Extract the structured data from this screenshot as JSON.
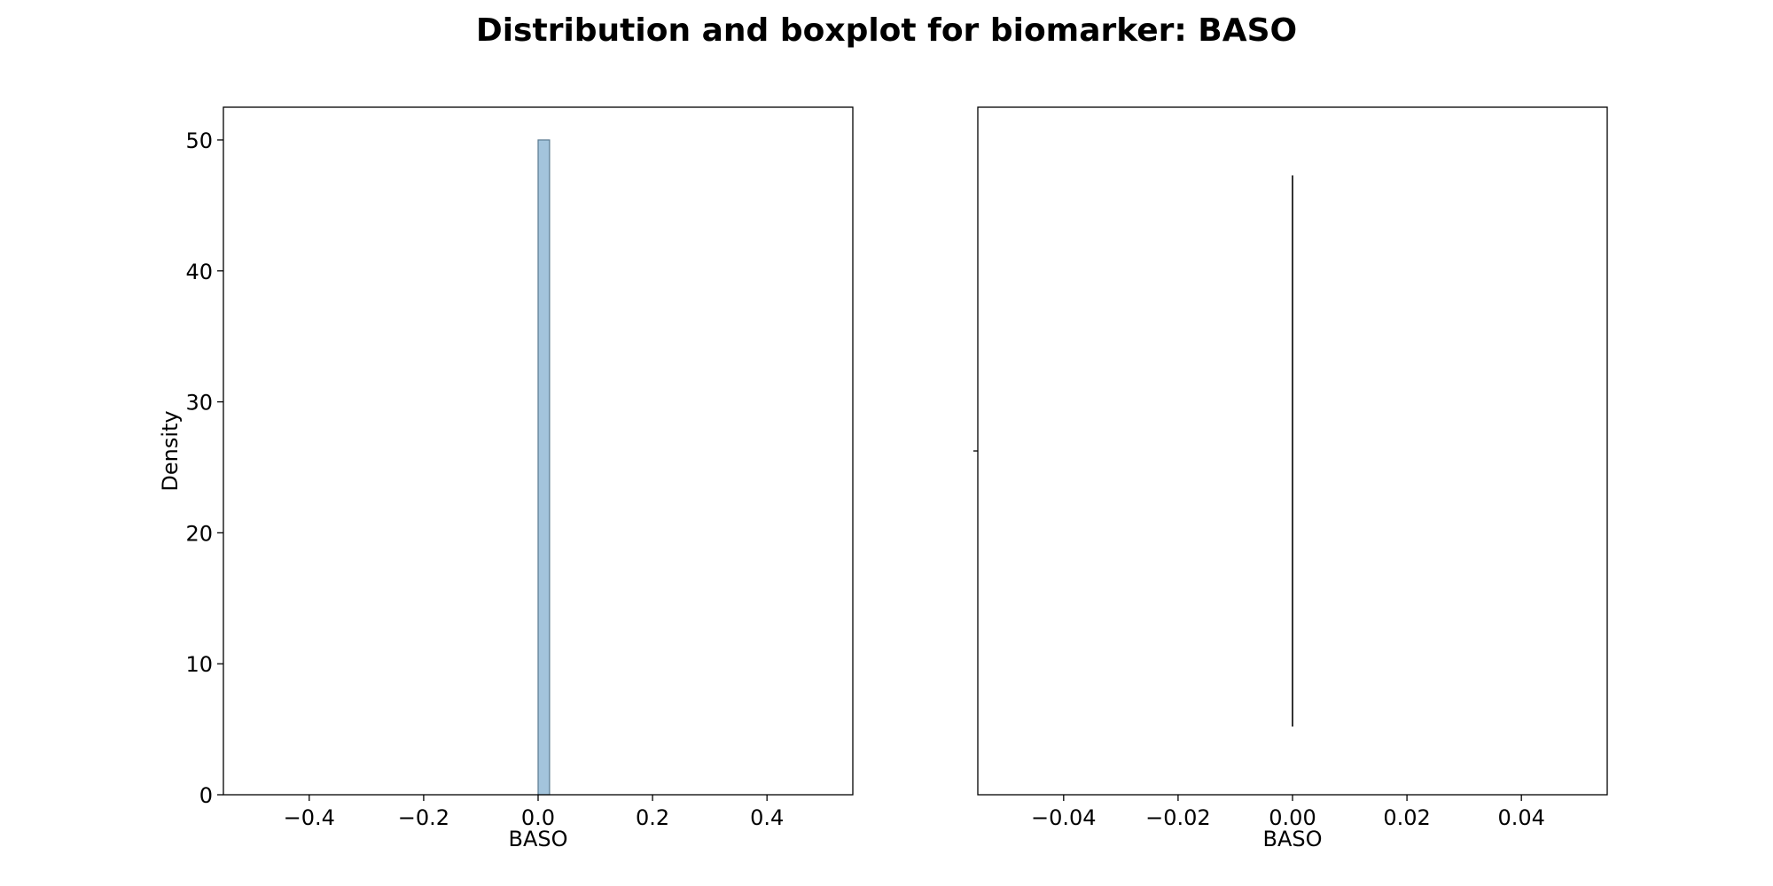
{
  "title": "Distribution and boxplot for biomarker: BASO",
  "chart_data": [
    {
      "type": "bar",
      "subtype": "histogram",
      "xlabel": "BASO",
      "ylabel": "Density",
      "xlim": [
        -0.55,
        0.55
      ],
      "ylim": [
        0,
        52.5
      ],
      "xticks": [
        -0.4,
        -0.2,
        0.0,
        0.2,
        0.4
      ],
      "xtick_labels": [
        "−0.4",
        "−0.2",
        "0.0",
        "0.2",
        "0.4"
      ],
      "yticks": [
        0,
        10,
        20,
        30,
        40,
        50
      ],
      "ytick_labels": [
        "0",
        "10",
        "20",
        "30",
        "40",
        "50"
      ],
      "bins": [
        {
          "x0": 0.0,
          "x1": 0.02,
          "value": 50
        }
      ],
      "bar_color": "#a3c4dc",
      "edge_color": "#5a7a90",
      "grid": false
    },
    {
      "type": "boxplot",
      "orientation": "horizontal",
      "xlabel": "BASO",
      "xlim": [
        -0.055,
        0.055
      ],
      "xticks": [
        -0.04,
        -0.02,
        0.0,
        0.02,
        0.04
      ],
      "xtick_labels": [
        "−0.04",
        "−0.02",
        "0.00",
        "0.02",
        "0.04"
      ],
      "box": {
        "min": 0.0,
        "q1": 0.0,
        "median": 0.0,
        "q3": 0.0,
        "max": 0.0
      },
      "line_color": "#000000",
      "grid": false
    }
  ]
}
